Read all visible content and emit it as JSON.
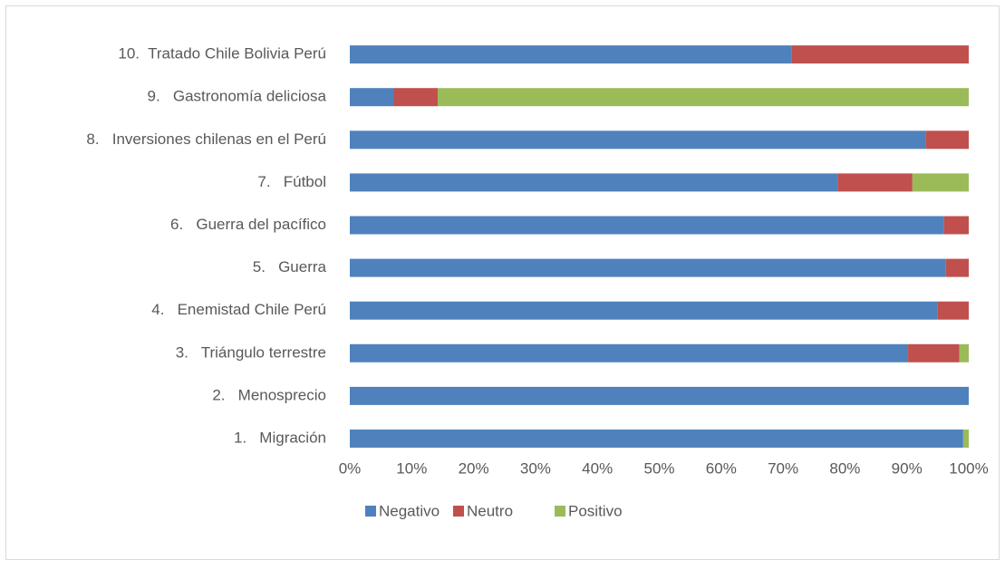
{
  "chart_data": {
    "type": "stacked_bar_horizontal",
    "categories": [
      "1.   Migración",
      "2.   Menosprecio",
      "3.   Triángulo terrestre",
      "4.   Enemistad Chile Perú",
      "5.   Guerra",
      "6.   Guerra del pacífico",
      "7.   Fútbol",
      "8.   Inversiones chilenas en el Perú",
      "9.   Gastronomía deliciosa",
      "10.  Tratado Chile Bolivia Perú"
    ],
    "series": [
      {
        "name": "Negativo",
        "color": "#4f81bd",
        "values": [
          99.1,
          100,
          90.2,
          94.9,
          96.3,
          96.0,
          78.8,
          93.0,
          7.1,
          71.4
        ]
      },
      {
        "name": "Neutro",
        "color": "#c0504d",
        "values": [
          0,
          0,
          8.3,
          5.1,
          3.7,
          4.0,
          12.1,
          7.0,
          7.1,
          28.6
        ]
      },
      {
        "name": "Positivo",
        "color": "#9bbb59",
        "values": [
          0.9,
          0,
          1.5,
          0,
          0,
          0,
          9.1,
          0,
          85.8,
          0
        ]
      }
    ],
    "xlim": [
      0,
      100
    ],
    "xticks": [
      {
        "value": 0,
        "label": "0%"
      },
      {
        "value": 10,
        "label": "10%"
      },
      {
        "value": 20,
        "label": "20%"
      },
      {
        "value": 30,
        "label": "30%"
      },
      {
        "value": 40,
        "label": "40%"
      },
      {
        "value": 50,
        "label": "50%"
      },
      {
        "value": 60,
        "label": "60%"
      },
      {
        "value": 70,
        "label": "70%"
      },
      {
        "value": 80,
        "label": "80%"
      },
      {
        "value": 90,
        "label": "90%"
      },
      {
        "value": 100,
        "label": "100%"
      }
    ],
    "grid": false,
    "legend": "bottom"
  }
}
